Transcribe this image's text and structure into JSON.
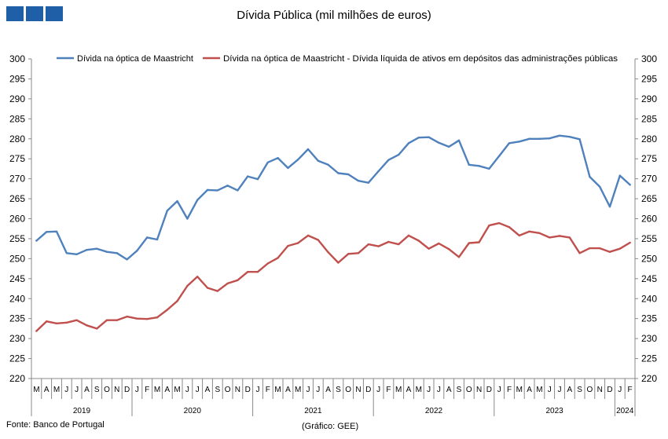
{
  "header": {
    "title": "Dívida Pública (mil milhões de euros)"
  },
  "footer": {
    "source": "Fonte: Banco de Portugal",
    "credit": "(Gráfico: GEE)"
  },
  "colors": {
    "logo": "#1f5fa8",
    "series_1": "#4f81bd",
    "series_2": "#c0504d"
  },
  "chart_data": {
    "type": "line",
    "title": "Dívida Pública (mil milhões de euros)",
    "xlabel": "",
    "ylabel": "",
    "ylim": [
      220,
      300
    ],
    "yticks": [
      220,
      225,
      230,
      235,
      240,
      245,
      250,
      255,
      260,
      265,
      270,
      275,
      280,
      285,
      290,
      295,
      300
    ],
    "y_axes": "left and right (same scale)",
    "grid": false,
    "legend_position": "top",
    "x": [
      "M",
      "A",
      "M",
      "J",
      "J",
      "A",
      "S",
      "O",
      "N",
      "D",
      "J",
      "F",
      "M",
      "A",
      "M",
      "J",
      "J",
      "A",
      "S",
      "O",
      "N",
      "D",
      "J",
      "F",
      "M",
      "A",
      "M",
      "J",
      "J",
      "A",
      "S",
      "O",
      "N",
      "D",
      "J",
      "F",
      "M",
      "A",
      "M",
      "J",
      "J",
      "A",
      "S",
      "O",
      "N",
      "D",
      "J",
      "F",
      "M",
      "A",
      "M",
      "J",
      "J",
      "A",
      "S",
      "O",
      "N",
      "D",
      "J",
      "F"
    ],
    "years": [
      {
        "label": "2019",
        "start": 0,
        "count": 10
      },
      {
        "label": "2020",
        "start": 10,
        "count": 12
      },
      {
        "label": "2021",
        "start": 22,
        "count": 12
      },
      {
        "label": "2022",
        "start": 34,
        "count": 12
      },
      {
        "label": "2023",
        "start": 46,
        "count": 12
      },
      {
        "label": "2024",
        "start": 58,
        "count": 2
      }
    ],
    "series": [
      {
        "name": "Dívida na óptica de Maastricht",
        "color": "#4f81bd",
        "values": [
          254.5,
          256.7,
          256.8,
          251.4,
          251.1,
          252.2,
          252.5,
          251.7,
          251.4,
          249.8,
          252.0,
          255.3,
          254.8,
          262.0,
          264.4,
          260.0,
          264.7,
          267.2,
          267.1,
          268.3,
          267.1,
          270.6,
          269.9,
          274.1,
          275.2,
          272.7,
          274.8,
          277.4,
          274.5,
          273.5,
          271.4,
          271.1,
          269.5,
          269.0,
          271.9,
          274.7,
          276.0,
          278.9,
          280.3,
          280.4,
          279.0,
          278.0,
          279.6,
          273.5,
          273.2,
          272.5,
          275.7,
          278.9,
          279.3,
          280.0,
          280.0,
          280.1,
          280.8,
          280.5,
          279.9,
          270.5,
          268.0,
          263.0,
          270.8,
          268.5
        ]
      },
      {
        "name": "Dívida na óptica de Maastricht - Dívida líquida de ativos em depósitos das administrações públicas",
        "color": "#c0504d",
        "values": [
          231.9,
          234.3,
          233.8,
          234.0,
          234.6,
          233.3,
          232.5,
          234.6,
          234.6,
          235.5,
          235.0,
          234.9,
          235.3,
          237.2,
          239.4,
          243.2,
          245.5,
          242.7,
          241.9,
          243.8,
          244.6,
          246.7,
          246.7,
          248.8,
          250.2,
          253.2,
          253.9,
          255.8,
          254.7,
          251.6,
          249.0,
          251.2,
          251.4,
          253.6,
          253.1,
          254.2,
          253.6,
          255.8,
          254.5,
          252.5,
          253.8,
          252.4,
          250.4,
          253.9,
          254.1,
          258.3,
          258.9,
          257.9,
          255.8,
          256.8,
          256.4,
          255.3,
          255.7,
          255.3,
          251.4,
          252.6,
          252.6,
          251.7,
          252.5,
          254.0
        ]
      }
    ]
  }
}
